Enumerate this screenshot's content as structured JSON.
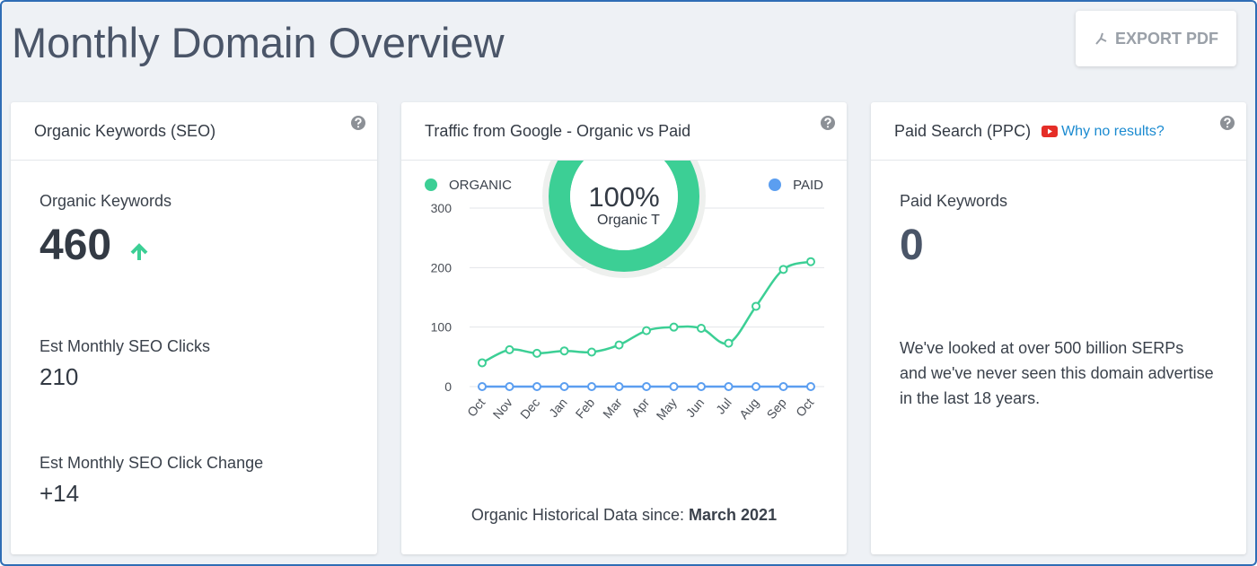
{
  "header": {
    "title": "Monthly Domain Overview",
    "export_button": "EXPORT PDF"
  },
  "organic_card": {
    "title": "Organic Keywords (SEO)",
    "metrics": [
      {
        "label": "Organic Keywords",
        "value": 460
      },
      {
        "label": "Est Monthly SEO Clicks",
        "value": 210
      },
      {
        "label": "Est Monthly SEO Click Change",
        "value": "+14"
      }
    ]
  },
  "traffic_card": {
    "title": "Traffic from Google - Organic vs Paid",
    "footer_label": "Organic Historical Data since:",
    "footer_date": "March 2021"
  },
  "chart_data": {
    "type": "line",
    "categories": [
      "Oct",
      "Nov",
      "Dec",
      "Jan",
      "Feb",
      "Mar",
      "Apr",
      "May",
      "Jun",
      "Jul",
      "Aug",
      "Sep",
      "Oct"
    ],
    "series": [
      {
        "name": "ORGANIC",
        "color": "#3ccf95",
        "values": [
          40,
          62,
          56,
          60,
          58,
          70,
          94,
          100,
          98,
          73,
          135,
          197,
          210
        ]
      },
      {
        "name": "PAID",
        "color": "#5b9ef0",
        "values": [
          0,
          0,
          0,
          0,
          0,
          0,
          0,
          0,
          0,
          0,
          0,
          0,
          0
        ]
      }
    ],
    "ylim": [
      0,
      300
    ],
    "yticks": [
      0,
      100,
      200,
      300
    ],
    "grid": true,
    "donut": {
      "value": 100,
      "value_label": "100%",
      "caption": "Organic Traffic"
    }
  },
  "paid_card": {
    "title": "Paid Search (PPC)",
    "link": "Why no results?",
    "metric_label": "Paid Keywords",
    "metric_value": 0,
    "description": "We've looked at over 500 billion SERPs and we've never seen this domain advertise in the last 18 years."
  }
}
